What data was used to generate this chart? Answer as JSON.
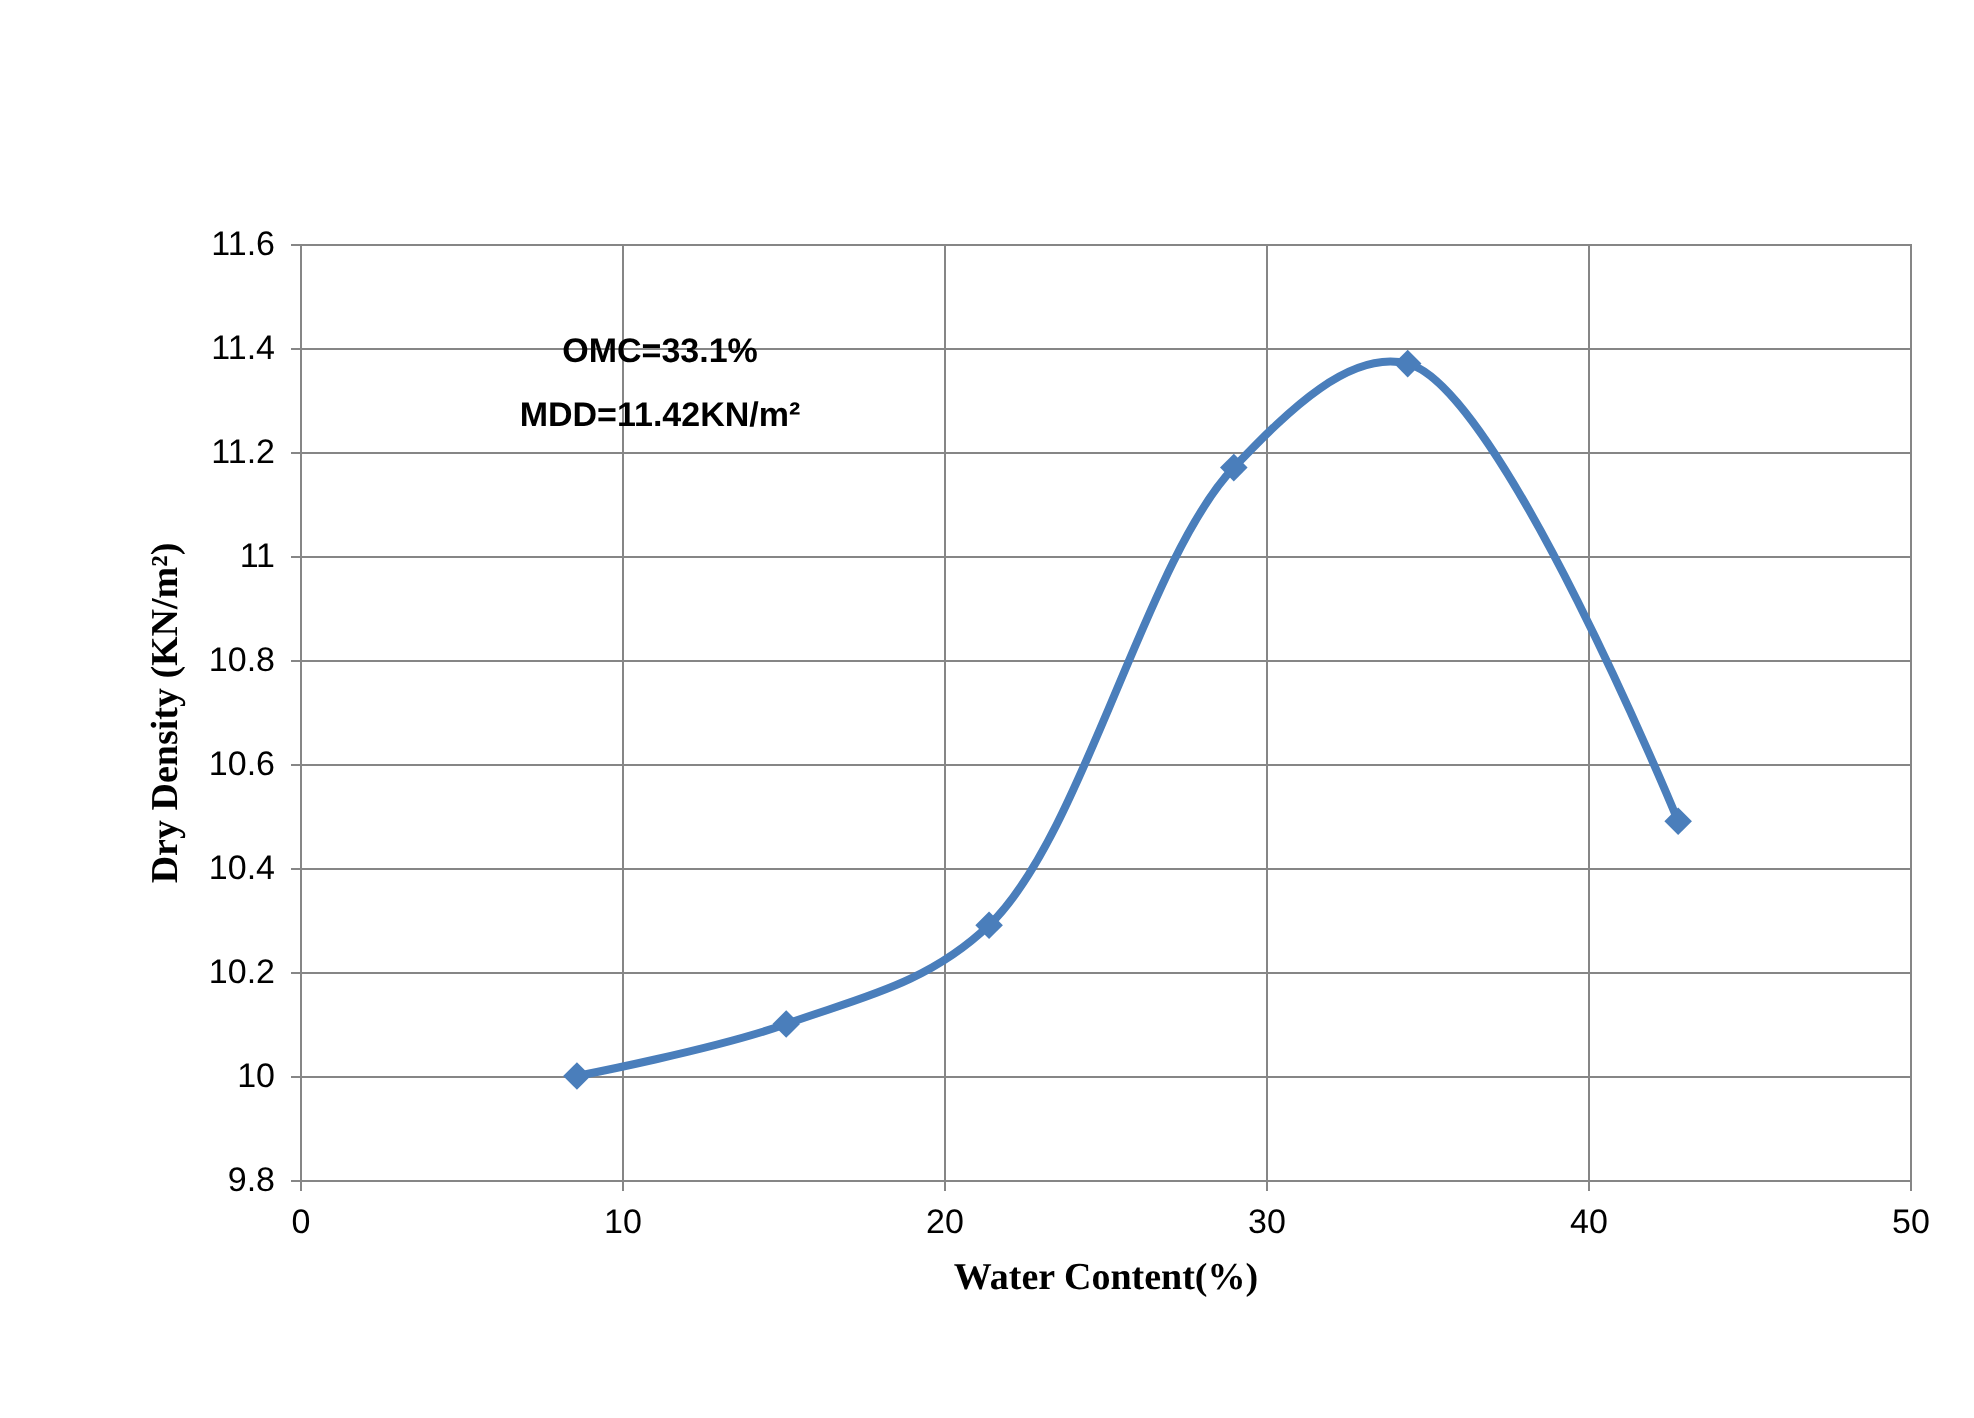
{
  "chart_data": {
    "type": "line",
    "xlabel": "Water  Content(%)",
    "ylabel": "Dry Density (KN/m²)",
    "annotations": [
      "OMC=33.1%",
      "MDD=11.42KN/m²"
    ],
    "x": [
      8.6,
      15.1,
      21.4,
      29.0,
      34.4,
      42.8
    ],
    "series": [
      {
        "color": "#4a7ebb",
        "values": [
          10.0,
          10.1,
          10.29,
          11.17,
          11.37,
          10.49
        ]
      }
    ],
    "xlim": [
      0,
      50
    ],
    "xticks": [
      0,
      10,
      20,
      30,
      40,
      50
    ],
    "ylim": [
      9.8,
      11.6
    ],
    "yticks": [
      9.8,
      10,
      10.2,
      10.4,
      10.6,
      10.8,
      11,
      11.2,
      11.4,
      11.6
    ],
    "grid": true,
    "marker": "diamond",
    "line_style": "solid"
  }
}
